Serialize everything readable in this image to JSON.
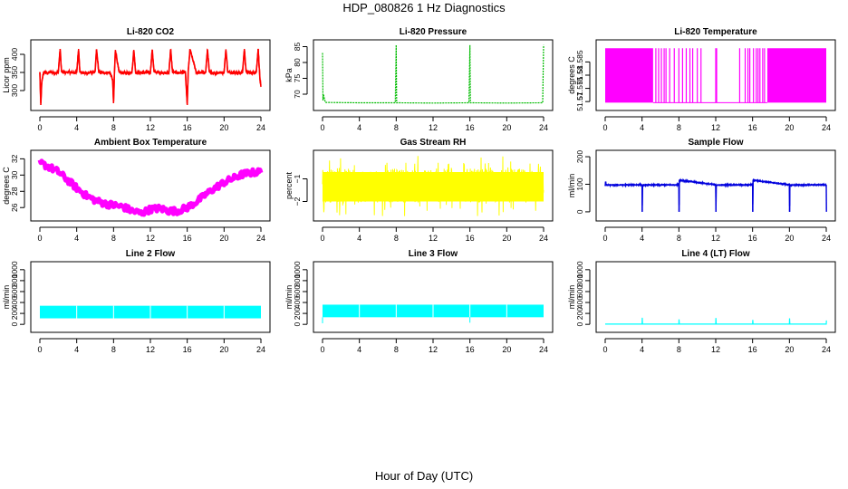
{
  "title": "HDP_080826  1 Hz Diagnostics",
  "xlabel": "Hour of Day (UTC)",
  "chart_data": [
    {
      "type": "line",
      "title": "Li-820 CO2",
      "ylabel": "Licor ppm",
      "color": "#ff0000",
      "xlim": [
        0,
        24
      ],
      "ylim": [
        255,
        430
      ],
      "xticks": [
        0,
        4,
        8,
        12,
        16,
        20,
        24
      ],
      "yticks": [
        300,
        350,
        400
      ],
      "series": [
        {
          "name": "CO2",
          "x": [
            0,
            0.1,
            0.2,
            0.35,
            0.5,
            0.8,
            1.2,
            1.6,
            2.0,
            2.2,
            2.35,
            2.5,
            3.0,
            3.5,
            4.0,
            4.2,
            4.35,
            4.5,
            5.0,
            5.5,
            6.0,
            6.15,
            6.4,
            7.0,
            7.6,
            7.9,
            8.0,
            8.1,
            8.2,
            8.6,
            9.2,
            10.0,
            10.2,
            10.4,
            11.0,
            12.0,
            12.2,
            12.4,
            13.0,
            14.0,
            14.2,
            14.4,
            15.0,
            15.8,
            16.0,
            16.1,
            16.3,
            17.0,
            18.0,
            18.2,
            18.4,
            19.0,
            20.0,
            20.2,
            20.4,
            21.0,
            22.0,
            22.2,
            22.4,
            23.0,
            23.5,
            23.7,
            23.9,
            24.0
          ],
          "y": [
            350,
            260,
            320,
            345,
            350,
            348,
            351,
            349,
            350,
            415,
            352,
            349,
            351,
            350,
            349,
            415,
            351,
            350,
            348,
            350,
            351,
            414,
            350,
            349,
            350,
            330,
            265,
            350,
            412,
            350,
            349,
            350,
            412,
            350,
            349,
            350,
            413,
            351,
            350,
            348,
            414,
            351,
            349,
            350,
            260,
            350,
            413,
            349,
            350,
            414,
            350,
            349,
            350,
            414,
            351,
            350,
            349,
            415,
            350,
            349,
            351,
            415,
            330,
            310
          ]
        }
      ]
    },
    {
      "type": "line",
      "title": "Li-820 Pressure",
      "ylabel": "kPa",
      "color": "#00bb00",
      "xlim": [
        0,
        24
      ],
      "ylim": [
        66,
        86
      ],
      "xticks": [
        0,
        4,
        8,
        12,
        16,
        20,
        24
      ],
      "yticks": [
        70,
        75,
        80,
        85
      ],
      "series": [
        {
          "name": "Pressure",
          "x": [
            0,
            0.05,
            0.1,
            0.3,
            4,
            7.9,
            8.0,
            8.05,
            12,
            15.9,
            16.0,
            16.05,
            20,
            23.9,
            24.0
          ],
          "y": [
            83,
            68,
            70,
            67.4,
            67.3,
            67.3,
            85.5,
            67.3,
            67.2,
            67.3,
            85.5,
            67.3,
            67.2,
            67.3,
            85.5
          ]
        }
      ]
    },
    {
      "type": "line",
      "title": "Li-820 Temperature",
      "ylabel": "degrees C",
      "color": "#ff00ff",
      "xlim": [
        0,
        24
      ],
      "ylim": [
        51.568,
        51.592
      ],
      "xticks": [
        0,
        4,
        8,
        12,
        16,
        20,
        24
      ],
      "yticks": [
        51.57,
        51.575,
        51.58,
        51.585
      ],
      "series": [
        {
          "name": "Temperature",
          "x": [
            0,
            24
          ],
          "y": [
            51.5696,
            51.5902
          ]
        }
      ]
    },
    {
      "type": "line",
      "title": "Ambient Box Temperature",
      "ylabel": "degrees C",
      "color": "#ff00ff",
      "xlim": [
        0,
        24
      ],
      "ylim": [
        24.8,
        32.6
      ],
      "xticks": [
        0,
        4,
        8,
        12,
        16,
        20,
        24
      ],
      "yticks": [
        26,
        28,
        30,
        32
      ],
      "series": [
        {
          "name": "Box Temperature",
          "x": [
            0,
            1,
            2,
            3,
            4,
            5,
            6,
            7,
            8,
            9,
            10,
            11,
            12,
            13,
            14,
            15,
            16,
            17,
            18,
            19,
            20,
            21,
            22,
            23,
            24
          ],
          "y": [
            31.5,
            31.0,
            30.4,
            29.4,
            28.4,
            27.5,
            26.9,
            26.5,
            26.3,
            26.1,
            25.6,
            25.3,
            25.8,
            25.9,
            25.6,
            25.6,
            26.0,
            26.7,
            27.6,
            28.4,
            29.1,
            29.6,
            30.1,
            30.3,
            30.4
          ]
        }
      ]
    },
    {
      "type": "line",
      "title": "Gas Stream RH",
      "ylabel": "percent",
      "color": "#ffff00",
      "xlim": [
        0,
        24
      ],
      "ylim": [
        -2.7,
        0.1
      ],
      "xticks": [
        0,
        4,
        8,
        12,
        16,
        20,
        24
      ],
      "yticks": [
        -2,
        -1
      ],
      "series": [
        {
          "name": "RH",
          "x": [
            0,
            24
          ],
          "y": [
            -1.3,
            -1.3
          ]
        }
      ]
    },
    {
      "type": "line",
      "title": "Sample Flow",
      "ylabel": "ml/min",
      "color": "#0000dd",
      "xlim": [
        0,
        24
      ],
      "ylim": [
        -20,
        210
      ],
      "xticks": [
        0,
        4,
        8,
        12,
        16,
        20,
        24
      ],
      "yticks": [
        0,
        100,
        200
      ],
      "series": [
        {
          "name": "Sample Flow",
          "x": [
            0,
            0.05,
            0.1,
            4.0,
            4.02,
            4.05,
            8.0,
            8.02,
            8.05,
            12.0,
            12.02,
            12.05,
            16.0,
            16.02,
            16.05,
            20.0,
            20.02,
            20.05,
            24.0,
            24.02
          ],
          "y": [
            95,
            110,
            97,
            98,
            0,
            97,
            98,
            0,
            115,
            98,
            0,
            97,
            98,
            0,
            115,
            98,
            0,
            97,
            98,
            0
          ]
        }
      ]
    },
    {
      "type": "line",
      "title": "Line 2 Flow",
      "ylabel": "ml/min",
      "color": "#00ffff",
      "xlim": [
        0,
        24
      ],
      "ylim": [
        -80,
        1080
      ],
      "xticks": [
        0,
        4,
        8,
        12,
        16,
        20,
        24
      ],
      "yticks": [
        0,
        200,
        400,
        600,
        800,
        1000
      ],
      "series": [
        {
          "name": "Line 2 Flow",
          "x": [
            0,
            24
          ],
          "y": [
            210,
            210
          ]
        }
      ]
    },
    {
      "type": "line",
      "title": "Line 3 Flow",
      "ylabel": "ml/min",
      "color": "#00ffff",
      "xlim": [
        0,
        24
      ],
      "ylim": [
        -80,
        1080
      ],
      "xticks": [
        0,
        4,
        8,
        12,
        16,
        20,
        24
      ],
      "yticks": [
        0,
        200,
        400,
        600,
        800,
        1000
      ],
      "series": [
        {
          "name": "Line 3 Flow",
          "x": [
            0,
            24
          ],
          "y": [
            230,
            230
          ]
        }
      ]
    },
    {
      "type": "line",
      "title": "Line 4 (LT) Flow",
      "ylabel": "ml/min",
      "color": "#00ffff",
      "xlim": [
        0,
        24
      ],
      "ylim": [
        -80,
        1080
      ],
      "xticks": [
        0,
        4,
        8,
        12,
        16,
        20,
        24
      ],
      "yticks": [
        0,
        200,
        400,
        600,
        800,
        1000
      ],
      "series": [
        {
          "name": "Line 4 Flow",
          "x": [
            0,
            4.0,
            4.02,
            4.05,
            8.0,
            8.02,
            8.05,
            12.0,
            12.02,
            12.05,
            16.0,
            16.02,
            16.05,
            20.0,
            20.02,
            20.05,
            24.0,
            24.02
          ],
          "y": [
            5,
            5,
            120,
            5,
            5,
            90,
            5,
            5,
            115,
            5,
            5,
            80,
            5,
            5,
            110,
            5,
            5,
            70
          ]
        }
      ]
    }
  ]
}
